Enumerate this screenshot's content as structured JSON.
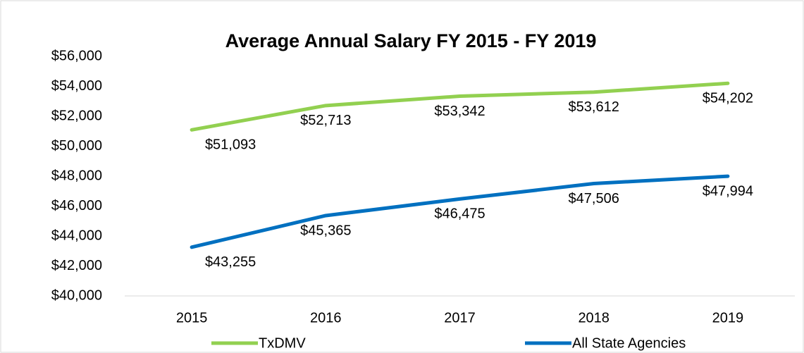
{
  "chart_data": {
    "type": "line",
    "title": "Average Annual Salary FY 2015 - FY 2019",
    "categories": [
      "2015",
      "2016",
      "2017",
      "2018",
      "2019"
    ],
    "series": [
      {
        "name": "TxDMV",
        "color": "#92d050",
        "values": [
          51093,
          52713,
          53342,
          53612,
          54202
        ],
        "value_labels": [
          "$51,093",
          "$52,713",
          "$53,342",
          "$53,612",
          "$54,202"
        ]
      },
      {
        "name": "All State Agencies",
        "color": "#0070c0",
        "values": [
          43255,
          45365,
          46475,
          47506,
          47994
        ],
        "value_labels": [
          "$43,255",
          "$45,365",
          "$46,475",
          "$47,506",
          "$47,994"
        ]
      }
    ],
    "ylim": [
      40000,
      56000
    ],
    "yticks": [
      {
        "value": 40000,
        "label": "$40,000"
      },
      {
        "value": 42000,
        "label": "$42,000"
      },
      {
        "value": 44000,
        "label": "$44,000"
      },
      {
        "value": 46000,
        "label": "$46,000"
      },
      {
        "value": 48000,
        "label": "$48,000"
      },
      {
        "value": 50000,
        "label": "$50,000"
      },
      {
        "value": 52000,
        "label": "$52,000"
      },
      {
        "value": 54000,
        "label": "$54,000"
      },
      {
        "value": 56000,
        "label": "$56,000"
      }
    ],
    "grid": false,
    "legend": "bottom"
  }
}
